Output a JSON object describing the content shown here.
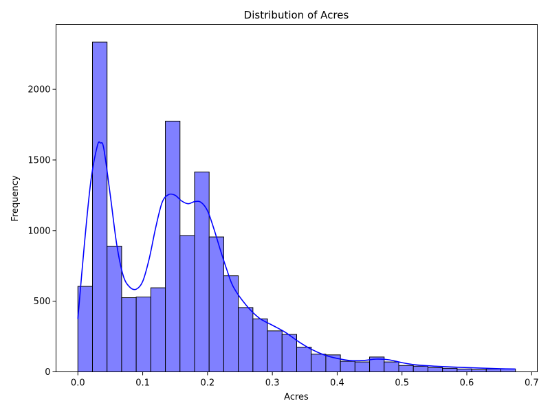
{
  "chart_data": {
    "type": "bar",
    "title": "Distribution of Acres",
    "xlabel": "Acres",
    "ylabel": "Frequency",
    "xlim": [
      -0.0337,
      0.7087
    ],
    "ylim": [
      0,
      2460
    ],
    "x_ticks": [
      0.0,
      0.1,
      0.2,
      0.3,
      0.4,
      0.5,
      0.6,
      0.7
    ],
    "x_tick_labels": [
      "0.0",
      "0.1",
      "0.2",
      "0.3",
      "0.4",
      "0.5",
      "0.6",
      "0.7"
    ],
    "y_ticks": [
      0,
      500,
      1000,
      1500,
      2000
    ],
    "y_tick_labels": [
      "0",
      "500",
      "1000",
      "1500",
      "2000"
    ],
    "grid": false,
    "bin_start": 0.0,
    "bin_width": 0.0225,
    "values": [
      605,
      2335,
      890,
      525,
      530,
      595,
      1775,
      965,
      1415,
      955,
      680,
      455,
      375,
      290,
      265,
      175,
      125,
      120,
      75,
      70,
      105,
      70,
      45,
      40,
      30,
      25,
      20,
      15,
      20,
      20
    ],
    "bar_color": "#8080ff",
    "edge_color": "#000000",
    "kde": {
      "color": "#0000ff",
      "x": [
        0.0,
        0.01,
        0.02,
        0.03,
        0.035,
        0.04,
        0.05,
        0.06,
        0.07,
        0.08,
        0.09,
        0.1,
        0.11,
        0.12,
        0.13,
        0.14,
        0.15,
        0.16,
        0.17,
        0.18,
        0.19,
        0.2,
        0.21,
        0.22,
        0.23,
        0.24,
        0.26,
        0.28,
        0.3,
        0.32,
        0.34,
        0.36,
        0.38,
        0.4,
        0.42,
        0.44,
        0.46,
        0.48,
        0.5,
        0.52,
        0.55,
        0.6,
        0.65,
        0.675
      ],
      "y": [
        375,
        900,
        1350,
        1600,
        1620,
        1580,
        1250,
        900,
        680,
        600,
        585,
        640,
        800,
        1020,
        1200,
        1255,
        1250,
        1210,
        1190,
        1205,
        1200,
        1140,
        1010,
        860,
        720,
        600,
        470,
        380,
        330,
        280,
        215,
        160,
        120,
        95,
        80,
        80,
        90,
        85,
        65,
        50,
        40,
        30,
        22,
        20
      ]
    }
  }
}
